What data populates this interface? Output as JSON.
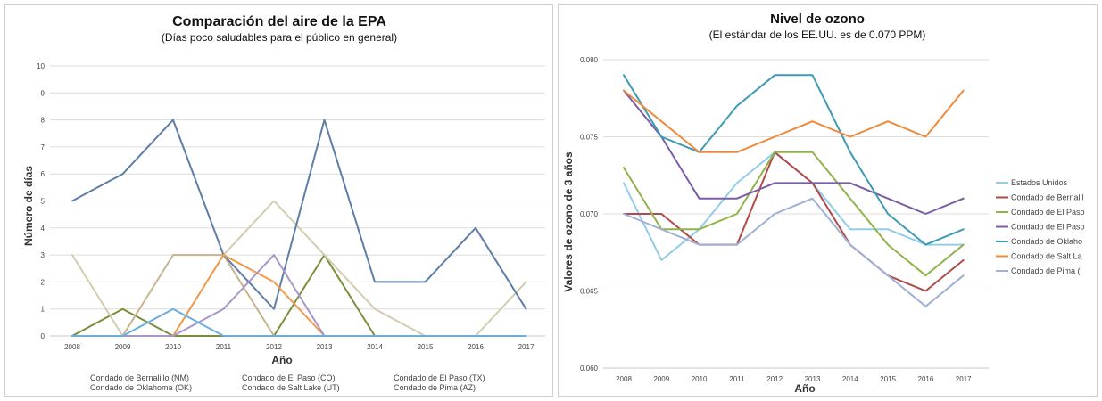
{
  "chart_data": [
    {
      "type": "line",
      "title": "Comparación del aire de la EPA",
      "subtitle": "(Días poco saludables para el público en general)",
      "xlabel": "Año",
      "ylabel": "Número de días",
      "x": [
        "2008",
        "2009",
        "2010",
        "2011",
        "2012",
        "2013",
        "2014",
        "2015",
        "2016",
        "2017"
      ],
      "ylim": [
        0,
        10
      ],
      "yticks": [
        "0",
        "1",
        "2",
        "3",
        "4",
        "5",
        "6",
        "7",
        "8",
        "9",
        "10"
      ],
      "grid": true,
      "legend_position": "bottom",
      "series": [
        {
          "name": "Condado de Bernalillo (NM)",
          "color": "#7a8d3a",
          "values": [
            0,
            1,
            0,
            0,
            0,
            3,
            0,
            0,
            0,
            0
          ]
        },
        {
          "name": "Condado de El Paso (CO)",
          "color": "#c9b28f",
          "values": [
            0,
            0,
            3,
            3,
            0,
            0,
            0,
            0,
            0,
            0
          ]
        },
        {
          "name": "Condado de El Paso (TX)",
          "color": "#d4cbae",
          "values": [
            3,
            0,
            0,
            3,
            5,
            3,
            1,
            0,
            0,
            2
          ]
        },
        {
          "name": "Condado de Oklahoma (OK)",
          "color": "#5f7ea6",
          "values": [
            5,
            6,
            8,
            3,
            1,
            8,
            2,
            2,
            4,
            1
          ]
        },
        {
          "name": "Condado de Salt Lake (UT)",
          "color": "#f09a4a",
          "values": [
            0,
            0,
            0,
            3,
            2,
            0,
            0,
            0,
            0,
            0
          ]
        },
        {
          "name": "Condado de Pima (AZ)",
          "color": "#a896c9",
          "values": [
            0,
            0,
            0,
            1,
            3,
            0,
            0,
            0,
            0,
            0
          ]
        },
        {
          "color": "#6aaee0",
          "values": [
            0,
            0,
            1,
            0,
            0,
            0,
            0,
            0,
            0,
            0
          ]
        }
      ]
    },
    {
      "type": "line",
      "title": "Nivel de ozono",
      "subtitle": "(El estándar de los EE.UU. es de 0.070 PPM)",
      "xlabel": "Año",
      "ylabel": "Valores de ozono de 3 años",
      "x": [
        "2008",
        "2009",
        "2010",
        "2011",
        "2012",
        "2013",
        "2014",
        "2015",
        "2016",
        "2017"
      ],
      "ylim": [
        0.06,
        0.08
      ],
      "yticks": [
        "0.060",
        "0.065",
        "0.070",
        "0.075",
        "0.080"
      ],
      "grid": true,
      "legend_position": "right",
      "series": [
        {
          "name": "Estados Unidos",
          "color": "#92cde8",
          "values": [
            0.072,
            0.067,
            0.069,
            0.072,
            0.074,
            0.072,
            0.069,
            0.069,
            0.068,
            0.068
          ]
        },
        {
          "name": "Condado de Bernalil",
          "color": "#b04a4a",
          "values": [
            0.07,
            0.07,
            0.068,
            0.068,
            0.074,
            0.072,
            0.068,
            0.066,
            0.065,
            0.067
          ]
        },
        {
          "name": "Condado de El Paso",
          "color": "#8fb34a",
          "values": [
            0.073,
            0.069,
            0.069,
            0.07,
            0.074,
            0.074,
            0.071,
            0.068,
            0.066,
            0.068
          ]
        },
        {
          "name": "Condado de El Paso",
          "color": "#7b5da6",
          "values": [
            0.078,
            0.075,
            0.071,
            0.071,
            0.072,
            0.072,
            0.072,
            0.071,
            0.07,
            0.071
          ]
        },
        {
          "name": "Condado de Oklaho",
          "color": "#3e9ab5",
          "values": [
            0.079,
            0.075,
            0.074,
            0.077,
            0.079,
            0.079,
            0.074,
            0.07,
            0.068,
            0.069
          ]
        },
        {
          "name": "Condado de Salt La",
          "color": "#ee8a3c",
          "values": [
            0.078,
            0.076,
            0.074,
            0.074,
            0.075,
            0.076,
            0.075,
            0.076,
            0.075,
            0.078
          ]
        },
        {
          "name": "Condado de Pima (",
          "color": "#9fb1d6",
          "values": [
            0.07,
            0.069,
            0.068,
            0.068,
            0.07,
            0.071,
            0.068,
            0.066,
            0.064,
            0.066
          ]
        }
      ]
    }
  ]
}
